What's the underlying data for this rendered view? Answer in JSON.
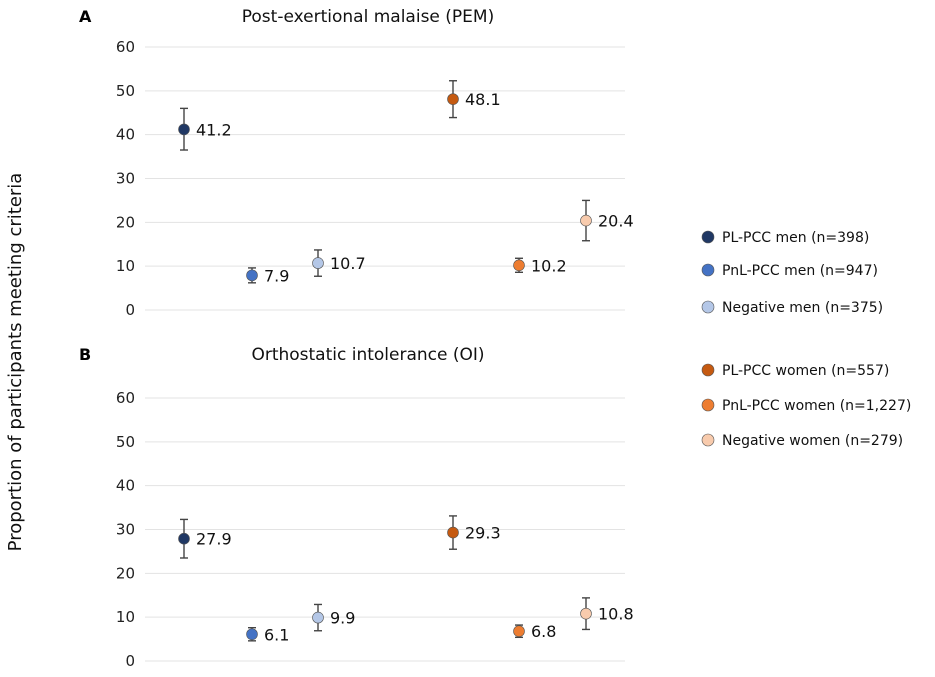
{
  "ylabel": "Proportion of participants meeting criteria",
  "legend": [
    {
      "label": "PL-PCC men (n=398)",
      "color": "#203864"
    },
    {
      "label": "PnL-PCC men (n=947)",
      "color": "#4472c4"
    },
    {
      "label": "Negative men (n=375)",
      "color": "#b4c7e7"
    },
    {
      "label": "PL-PCC women (n=557)",
      "color": "#c55a11"
    },
    {
      "label": "PnL-PCC women (n=1,227)",
      "color": "#ed7d31"
    },
    {
      "label": "Negative women (n=279)",
      "color": "#f8cbad"
    }
  ],
  "chart_data": [
    {
      "type": "scatter",
      "panel": "A",
      "title": "Post-exertional malaise (PEM)",
      "ylim": [
        0,
        60
      ],
      "yticks": [
        "0",
        "10",
        "20",
        "30",
        "40",
        "50",
        "60"
      ],
      "series": [
        {
          "name": "PL-PCC men (n=398)",
          "value": 41.2,
          "label": "41.2",
          "lower": 36.5,
          "upper": 46.0
        },
        {
          "name": "PnL-PCC men (n=947)",
          "value": 7.9,
          "label": "7.9",
          "lower": 6.2,
          "upper": 9.6
        },
        {
          "name": "Negative men (n=375)",
          "value": 10.7,
          "label": "10.7",
          "lower": 7.7,
          "upper": 13.7
        },
        {
          "name": "PL-PCC women (n=557)",
          "value": 48.1,
          "label": "48.1",
          "lower": 43.9,
          "upper": 52.3
        },
        {
          "name": "PnL-PCC women (n=1,227)",
          "value": 10.2,
          "label": "10.2",
          "lower": 8.6,
          "upper": 11.8
        },
        {
          "name": "Negative women (n=279)",
          "value": 20.4,
          "label": "20.4",
          "lower": 15.8,
          "upper": 25.0
        }
      ]
    },
    {
      "type": "scatter",
      "panel": "B",
      "title": "Orthostatic intolerance (OI)",
      "ylim": [
        0,
        60
      ],
      "yticks": [
        "0",
        "10",
        "20",
        "30",
        "40",
        "50",
        "60"
      ],
      "series": [
        {
          "name": "PL-PCC men (n=398)",
          "value": 27.9,
          "label": "27.9",
          "lower": 23.5,
          "upper": 32.3
        },
        {
          "name": "PnL-PCC men (n=947)",
          "value": 6.1,
          "label": "6.1",
          "lower": 4.6,
          "upper": 7.6
        },
        {
          "name": "Negative men (n=375)",
          "value": 9.9,
          "label": "9.9",
          "lower": 6.9,
          "upper": 12.9
        },
        {
          "name": "PL-PCC women (n=557)",
          "value": 29.3,
          "label": "29.3",
          "lower": 25.5,
          "upper": 33.1
        },
        {
          "name": "PnL-PCC women (n=1,227)",
          "value": 6.8,
          "label": "6.8",
          "lower": 5.4,
          "upper": 8.2
        },
        {
          "name": "Negative women (n=279)",
          "value": 10.8,
          "label": "10.8",
          "lower": 7.2,
          "upper": 14.4
        }
      ]
    }
  ]
}
